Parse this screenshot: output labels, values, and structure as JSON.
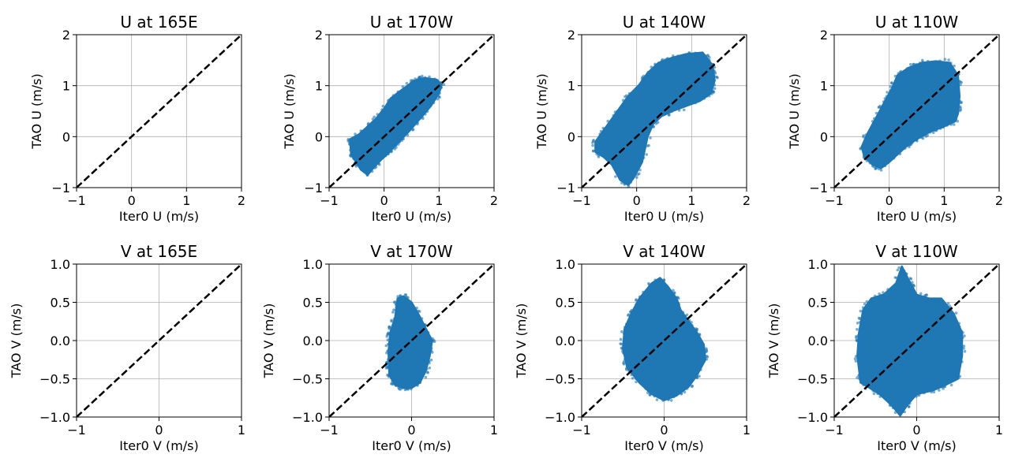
{
  "chart_data": [
    {
      "type": "scatter",
      "title": "U at 165E",
      "xlabel": "Iter0 U (m/s)",
      "ylabel": "TAO U (m/s)",
      "xlim": [
        -1,
        2
      ],
      "ylim": [
        -1,
        2
      ],
      "xticks": [
        -1,
        0,
        1,
        2
      ],
      "yticks": [
        -1,
        0,
        1,
        2
      ],
      "xtick_labels": [
        "−1",
        "0",
        "1",
        "2"
      ],
      "ytick_labels": [
        "−1",
        "0",
        "1",
        "2"
      ],
      "grid": true,
      "reference_line": "y = x (black dashed)",
      "color": "#1f77b4",
      "points": "none",
      "cloud": []
    },
    {
      "type": "scatter",
      "title": "U at 170W",
      "xlabel": "Iter0 U (m/s)",
      "ylabel": "TAO U (m/s)",
      "xlim": [
        -1,
        2
      ],
      "ylim": [
        -1,
        2
      ],
      "xticks": [
        -1,
        0,
        1,
        2
      ],
      "yticks": [
        -1,
        0,
        1,
        2
      ],
      "xtick_labels": [
        "−1",
        "0",
        "1",
        "2"
      ],
      "ytick_labels": [
        "−1",
        "0",
        "1",
        "2"
      ],
      "grid": true,
      "reference_line": "y = x (black dashed)",
      "color": "#1f77b4",
      "points": "dense cloud",
      "cloud": [
        [
          -0.62,
          -0.05
        ],
        [
          -0.45,
          0.05
        ],
        [
          -0.3,
          0.2
        ],
        [
          -0.15,
          0.35
        ],
        [
          0.0,
          0.55
        ],
        [
          0.12,
          0.75
        ],
        [
          0.3,
          0.9
        ],
        [
          0.55,
          1.1
        ],
        [
          0.75,
          1.15
        ],
        [
          0.95,
          1.12
        ],
        [
          1.05,
          1.02
        ],
        [
          1.0,
          0.85
        ],
        [
          0.85,
          0.6
        ],
        [
          0.65,
          0.35
        ],
        [
          0.45,
          0.1
        ],
        [
          0.25,
          -0.12
        ],
        [
          0.1,
          -0.3
        ],
        [
          -0.05,
          -0.45
        ],
        [
          -0.2,
          -0.62
        ],
        [
          -0.3,
          -0.75
        ],
        [
          -0.42,
          -0.65
        ],
        [
          -0.6,
          -0.35
        ]
      ]
    },
    {
      "type": "scatter",
      "title": "U at 140W",
      "xlabel": "Iter0 U (m/s)",
      "ylabel": "TAO U (m/s)",
      "xlim": [
        -1,
        2
      ],
      "ylim": [
        -1,
        2
      ],
      "xticks": [
        -1,
        0,
        1,
        2
      ],
      "yticks": [
        -1,
        0,
        1,
        2
      ],
      "xtick_labels": [
        "−1",
        "0",
        "1",
        "2"
      ],
      "ytick_labels": [
        "−1",
        "0",
        "1",
        "2"
      ],
      "grid": true,
      "reference_line": "y = x (black dashed)",
      "color": "#1f77b4",
      "points": "dense cloud",
      "cloud": [
        [
          -0.75,
          -0.1
        ],
        [
          -0.55,
          0.2
        ],
        [
          -0.35,
          0.5
        ],
        [
          -0.15,
          0.8
        ],
        [
          0.05,
          1.02
        ],
        [
          0.2,
          1.25
        ],
        [
          0.4,
          1.45
        ],
        [
          0.65,
          1.55
        ],
        [
          0.9,
          1.62
        ],
        [
          1.2,
          1.65
        ],
        [
          1.38,
          1.4
        ],
        [
          1.42,
          1.1
        ],
        [
          1.35,
          0.85
        ],
        [
          1.15,
          0.7
        ],
        [
          0.9,
          0.6
        ],
        [
          0.65,
          0.5
        ],
        [
          0.45,
          0.4
        ],
        [
          0.3,
          0.25
        ],
        [
          0.2,
          0.0
        ],
        [
          0.15,
          -0.25
        ],
        [
          0.1,
          -0.5
        ],
        [
          -0.05,
          -0.8
        ],
        [
          -0.15,
          -0.95
        ],
        [
          -0.3,
          -0.85
        ],
        [
          -0.45,
          -0.55
        ],
        [
          -0.6,
          -0.4
        ],
        [
          -0.75,
          -0.3
        ]
      ]
    },
    {
      "type": "scatter",
      "title": "U at 110W",
      "xlabel": "Iter0 U (m/s)",
      "ylabel": "TAO U (m/s)",
      "xlim": [
        -1,
        2
      ],
      "ylim": [
        -1,
        2
      ],
      "xticks": [
        -1,
        0,
        1,
        2
      ],
      "yticks": [
        -1,
        0,
        1,
        2
      ],
      "xtick_labels": [
        "−1",
        "0",
        "1",
        "2"
      ],
      "ytick_labels": [
        "−1",
        "0",
        "1",
        "2"
      ],
      "grid": true,
      "reference_line": "y = x (black dashed)",
      "color": "#1f77b4",
      "points": "dense cloud",
      "cloud": [
        [
          -0.5,
          -0.2
        ],
        [
          -0.4,
          0.05
        ],
        [
          -0.25,
          0.35
        ],
        [
          -0.1,
          0.65
        ],
        [
          0.05,
          0.95
        ],
        [
          0.15,
          1.2
        ],
        [
          0.35,
          1.35
        ],
        [
          0.6,
          1.45
        ],
        [
          0.85,
          1.48
        ],
        [
          1.1,
          1.45
        ],
        [
          1.25,
          1.2
        ],
        [
          1.28,
          0.8
        ],
        [
          1.25,
          0.45
        ],
        [
          1.2,
          0.3
        ],
        [
          1.0,
          0.2
        ],
        [
          0.75,
          0.1
        ],
        [
          0.5,
          -0.05
        ],
        [
          0.3,
          -0.2
        ],
        [
          0.15,
          -0.35
        ],
        [
          0.0,
          -0.5
        ],
        [
          -0.15,
          -0.62
        ],
        [
          -0.3,
          -0.55
        ],
        [
          -0.45,
          -0.4
        ]
      ]
    },
    {
      "type": "scatter",
      "title": "V at 165E",
      "xlabel": "Iter0 V (m/s)",
      "ylabel": "TAO V (m/s)",
      "xlim": [
        -1,
        1
      ],
      "ylim": [
        -1,
        1
      ],
      "xticks": [
        -1,
        0,
        1
      ],
      "yticks": [
        -1,
        -0.5,
        0,
        0.5,
        1
      ],
      "xtick_labels": [
        "−1",
        "0",
        "1"
      ],
      "ytick_labels": [
        "−1.0",
        "−0.5",
        "0.0",
        "0.5",
        "1.0"
      ],
      "grid": true,
      "reference_line": "y = x (black dashed)",
      "color": "#1f77b4",
      "points": "none",
      "cloud": []
    },
    {
      "type": "scatter",
      "title": "V at 170W",
      "xlabel": "Iter0 V (m/s)",
      "ylabel": "TAO V (m/s)",
      "xlim": [
        -1,
        1
      ],
      "ylim": [
        -1,
        1
      ],
      "xticks": [
        -1,
        0,
        1
      ],
      "yticks": [
        -1,
        -0.5,
        0,
        0.5,
        1
      ],
      "xtick_labels": [
        "−1",
        "0",
        "1"
      ],
      "ytick_labels": [
        "−1.0",
        "−0.5",
        "0.0",
        "0.5",
        "1.0"
      ],
      "grid": true,
      "reference_line": "y = x (black dashed)",
      "color": "#1f77b4",
      "points": "dense cloud",
      "cloud": [
        [
          -0.27,
          -0.45
        ],
        [
          -0.28,
          -0.15
        ],
        [
          -0.26,
          0.1
        ],
        [
          -0.2,
          0.3
        ],
        [
          -0.17,
          0.55
        ],
        [
          -0.1,
          0.58
        ],
        [
          0.0,
          0.5
        ],
        [
          0.08,
          0.35
        ],
        [
          0.13,
          0.25
        ],
        [
          0.2,
          0.1
        ],
        [
          0.25,
          0.0
        ],
        [
          0.22,
          -0.2
        ],
        [
          0.17,
          -0.4
        ],
        [
          0.1,
          -0.55
        ],
        [
          0.0,
          -0.62
        ],
        [
          -0.1,
          -0.62
        ],
        [
          -0.2,
          -0.58
        ]
      ]
    },
    {
      "type": "scatter",
      "title": "V at 140W",
      "xlabel": "Iter0 V (m/s)",
      "ylabel": "TAO V (m/s)",
      "xlim": [
        -1,
        1
      ],
      "ylim": [
        -1,
        1
      ],
      "xticks": [
        -1,
        0,
        1
      ],
      "yticks": [
        -1,
        -0.5,
        0,
        0.5,
        1
      ],
      "xtick_labels": [
        "−1",
        "0",
        "1"
      ],
      "ytick_labels": [
        "−1.0",
        "−0.5",
        "0.0",
        "0.5",
        "1.0"
      ],
      "grid": true,
      "reference_line": "y = x (black dashed)",
      "color": "#1f77b4",
      "points": "dense cloud",
      "cloud": [
        [
          -0.5,
          -0.1
        ],
        [
          -0.48,
          0.15
        ],
        [
          -0.4,
          0.35
        ],
        [
          -0.3,
          0.55
        ],
        [
          -0.15,
          0.75
        ],
        [
          -0.05,
          0.82
        ],
        [
          0.05,
          0.7
        ],
        [
          0.15,
          0.55
        ],
        [
          0.2,
          0.4
        ],
        [
          0.3,
          0.25
        ],
        [
          0.4,
          0.1
        ],
        [
          0.48,
          -0.05
        ],
        [
          0.5,
          -0.25
        ],
        [
          0.4,
          -0.45
        ],
        [
          0.3,
          -0.6
        ],
        [
          0.15,
          -0.72
        ],
        [
          0.0,
          -0.78
        ],
        [
          -0.15,
          -0.7
        ],
        [
          -0.3,
          -0.55
        ],
        [
          -0.45,
          -0.35
        ]
      ]
    },
    {
      "type": "scatter",
      "title": "V at 110W",
      "xlabel": "Iter0 V (m/s)",
      "ylabel": "TAO V (m/s)",
      "xlim": [
        -1,
        1
      ],
      "ylim": [
        -1,
        1
      ],
      "xticks": [
        -1,
        0,
        1
      ],
      "yticks": [
        -1,
        -0.5,
        0,
        0.5,
        1
      ],
      "xtick_labels": [
        "−1",
        "0",
        "1"
      ],
      "ytick_labels": [
        "−1.0",
        "−0.5",
        "0.0",
        "0.5",
        "1.0"
      ],
      "grid": true,
      "reference_line": "y = x (black dashed)",
      "color": "#1f77b4",
      "points": "dense cloud",
      "cloud": [
        [
          -0.68,
          -0.55
        ],
        [
          -0.72,
          -0.2
        ],
        [
          -0.7,
          0.1
        ],
        [
          -0.65,
          0.4
        ],
        [
          -0.55,
          0.55
        ],
        [
          -0.4,
          0.6
        ],
        [
          -0.25,
          0.75
        ],
        [
          -0.18,
          0.97
        ],
        [
          -0.1,
          0.8
        ],
        [
          0.0,
          0.6
        ],
        [
          0.15,
          0.55
        ],
        [
          0.3,
          0.55
        ],
        [
          0.45,
          0.35
        ],
        [
          0.55,
          0.1
        ],
        [
          0.55,
          -0.2
        ],
        [
          0.5,
          -0.5
        ],
        [
          0.35,
          -0.58
        ],
        [
          0.2,
          -0.65
        ],
        [
          0.0,
          -0.7
        ],
        [
          -0.12,
          -0.85
        ],
        [
          -0.2,
          -0.98
        ],
        [
          -0.3,
          -0.85
        ],
        [
          -0.45,
          -0.7
        ],
        [
          -0.6,
          -0.6
        ]
      ]
    }
  ]
}
